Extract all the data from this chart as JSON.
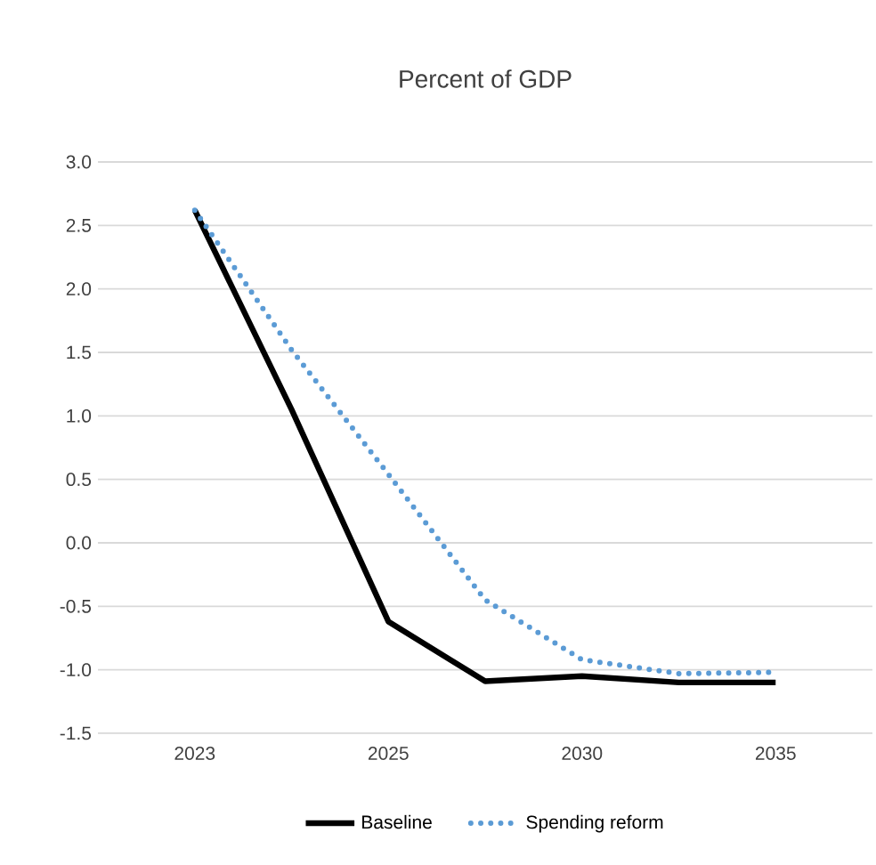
{
  "chart_data": {
    "type": "line",
    "title": "Percent of GDP",
    "categories": [
      "2023",
      null,
      "2025",
      null,
      "2030",
      null,
      "2035"
    ],
    "series": [
      {
        "name": "Baseline",
        "color": "#000000",
        "line_style": "solid",
        "values": [
          2.62,
          1.05,
          -0.62,
          -1.09,
          -1.05,
          -1.1,
          -1.1
        ]
      },
      {
        "name": "Spending reform",
        "color": "#5b9bd5",
        "line_style": "dotted",
        "values": [
          2.62,
          1.52,
          0.54,
          -0.45,
          -0.92,
          -1.03,
          -1.02
        ]
      }
    ],
    "ylim": [
      -1.5,
      3.0
    ],
    "yticks": [
      {
        "value": -1.5,
        "label": "-1.5"
      },
      {
        "value": -1.0,
        "label": "-1.0"
      },
      {
        "value": -0.5,
        "label": "-0.5"
      },
      {
        "value": 0.0,
        "label": "0.0"
      },
      {
        "value": 0.5,
        "label": "0.5"
      },
      {
        "value": 1.0,
        "label": "1.0"
      },
      {
        "value": 1.5,
        "label": "1.5"
      },
      {
        "value": 2.0,
        "label": "2.0"
      },
      {
        "value": 2.5,
        "label": "2.5"
      },
      {
        "value": 3.0,
        "label": "3.0"
      }
    ],
    "grid": "y",
    "legend": "bottom",
    "marker": "none"
  }
}
